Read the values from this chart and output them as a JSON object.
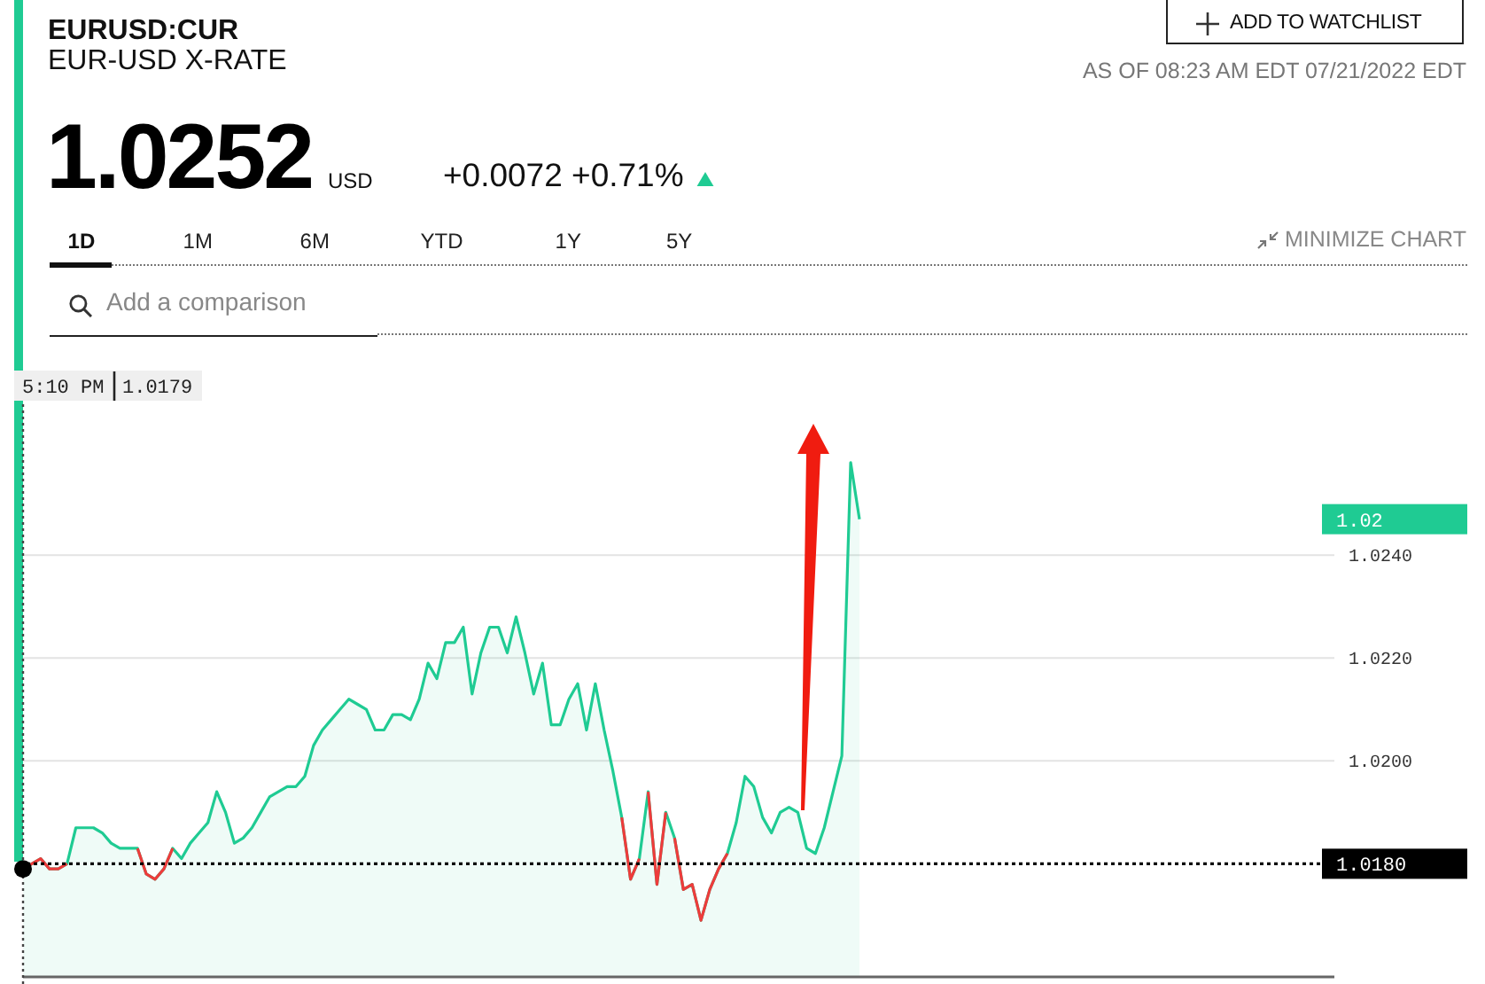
{
  "chart_data": {
    "type": "area",
    "title": "EURUSD:CUR",
    "subtitle": "EUR-USD X-RATE",
    "categories": [
      null,
      null,
      null,
      null,
      null,
      null,
      null,
      null,
      null,
      null,
      null,
      null,
      null,
      null,
      null,
      null,
      null,
      null,
      null,
      null,
      null,
      null,
      null,
      null,
      null,
      null,
      null,
      null,
      null,
      null,
      null,
      null,
      null,
      null,
      null,
      null,
      null,
      null,
      null,
      null,
      null,
      null,
      null,
      null,
      null,
      null,
      null,
      null,
      null,
      null,
      null,
      null,
      null,
      null,
      null,
      null,
      null,
      null,
      null,
      null,
      null,
      null,
      null,
      null,
      null,
      null,
      null,
      null,
      null,
      null,
      null,
      null,
      null,
      null,
      null,
      null,
      null,
      null,
      null,
      null,
      null,
      null,
      null,
      null,
      null,
      null,
      null,
      null,
      null,
      null,
      null,
      null,
      null,
      null,
      null,
      null
    ],
    "series": [
      {
        "color": "#1fcb93",
        "values": [
          1.0179,
          1.018,
          1.0181,
          1.0179,
          1.0179,
          1.018,
          1.0187,
          1.0187,
          1.0187,
          1.0186,
          1.0184,
          1.0183,
          1.0183,
          1.0183,
          1.0178,
          1.0177,
          1.0179,
          1.0183,
          1.0181,
          1.0184,
          1.0186,
          1.0188,
          1.0194,
          1.019,
          1.0184,
          1.0185,
          1.0187,
          1.019,
          1.0193,
          1.0194,
          1.0195,
          1.0195,
          1.0197,
          1.0203,
          1.0206,
          1.0208,
          1.021,
          1.0212,
          1.0211,
          1.021,
          1.0206,
          1.0206,
          1.0209,
          1.0209,
          1.0208,
          1.0212,
          1.0219,
          1.0216,
          1.0223,
          1.0223,
          1.0226,
          1.0213,
          1.0221,
          1.0226,
          1.0226,
          1.0221,
          1.0228,
          1.0221,
          1.0213,
          1.0219,
          1.0207,
          1.0207,
          1.0212,
          1.0215,
          1.0206,
          1.0215,
          1.0206,
          1.0198,
          1.0189,
          1.0177,
          1.0181,
          1.0194,
          1.0176,
          1.019,
          1.0185,
          1.0175,
          1.0176,
          1.0169,
          1.0175,
          1.0179,
          1.0182,
          1.0188,
          1.0197,
          1.0195,
          1.0189,
          1.0186,
          1.019,
          1.0191,
          1.019,
          1.0183,
          1.0182,
          1.0187,
          1.0194,
          1.0201,
          1.0258,
          1.0247
        ]
      },
      {
        "type": "line",
        "color": "#ee3b3b",
        "values": [
          1.0179,
          1.018,
          1.0181,
          1.0179,
          1.0179,
          1.018,
          null,
          null,
          null,
          null,
          null,
          null,
          null,
          1.0183,
          1.0178,
          1.0177,
          1.0179,
          1.0183,
          null,
          null,
          null,
          null,
          null,
          null,
          null,
          null,
          null,
          null,
          null,
          null,
          null,
          null,
          null,
          null,
          null,
          null,
          null,
          null,
          null,
          null,
          null,
          null,
          null,
          null,
          null,
          null,
          null,
          null,
          null,
          null,
          null,
          null,
          null,
          null,
          null,
          null,
          null,
          null,
          null,
          null,
          null,
          null,
          null,
          null,
          null,
          null,
          null,
          null,
          null,
          null,
          null,
          1.0194,
          1.0176,
          1.019,
          null,
          null,
          null,
          null,
          null,
          null,
          null,
          null,
          null,
          null,
          null,
          null,
          null,
          null,
          null,
          null,
          null,
          null,
          null,
          null,
          null,
          null
        ]
      },
      {
        "type": "line",
        "color": "#ee3b3b",
        "values": [
          null,
          null,
          null,
          null,
          null,
          null,
          null,
          null,
          null,
          null,
          null,
          null,
          null,
          null,
          null,
          null,
          null,
          null,
          null,
          null,
          null,
          null,
          null,
          null,
          null,
          null,
          null,
          null,
          null,
          null,
          null,
          null,
          null,
          null,
          null,
          null,
          null,
          null,
          null,
          null,
          null,
          null,
          null,
          null,
          null,
          null,
          null,
          null,
          null,
          null,
          null,
          null,
          null,
          null,
          null,
          null,
          null,
          null,
          null,
          null,
          null,
          null,
          null,
          null,
          null,
          null,
          null,
          null,
          1.0189,
          1.0177,
          1.0181,
          null,
          null,
          null,
          1.0185,
          1.0175,
          1.0176,
          1.0169,
          1.0175,
          1.0179,
          1.0182,
          null,
          null,
          null,
          null,
          null,
          null,
          null,
          null,
          null,
          null,
          null,
          null,
          null,
          null,
          null
        ]
      }
    ],
    "ylim": [
      1.0158,
      1.0269
    ],
    "yticks": [
      {
        "value": 1.02,
        "label": "1.0200"
      },
      {
        "value": 1.022,
        "label": "1.0220"
      },
      {
        "value": 1.024,
        "label": "1.0240"
      }
    ],
    "grid": "y",
    "tick_labels": "y",
    "ref_lines": [
      {
        "axis": "y",
        "value": 1.018,
        "label": "1.0180",
        "line_style": "dotted",
        "color": "#000000"
      }
    ],
    "annotations": [
      "1.0252",
      "USD",
      "+0.0072 +0.71%",
      "ADD TO WATCHLIST",
      "AS OF 08:23 AM EDT 07/21/2022 EDT",
      "1D",
      "1M",
      "6M",
      "YTD",
      "1Y",
      "5Y",
      "MINIMIZE CHART",
      "Add a comparison",
      "5:10 PM",
      "1.0179",
      "1.02"
    ]
  }
}
